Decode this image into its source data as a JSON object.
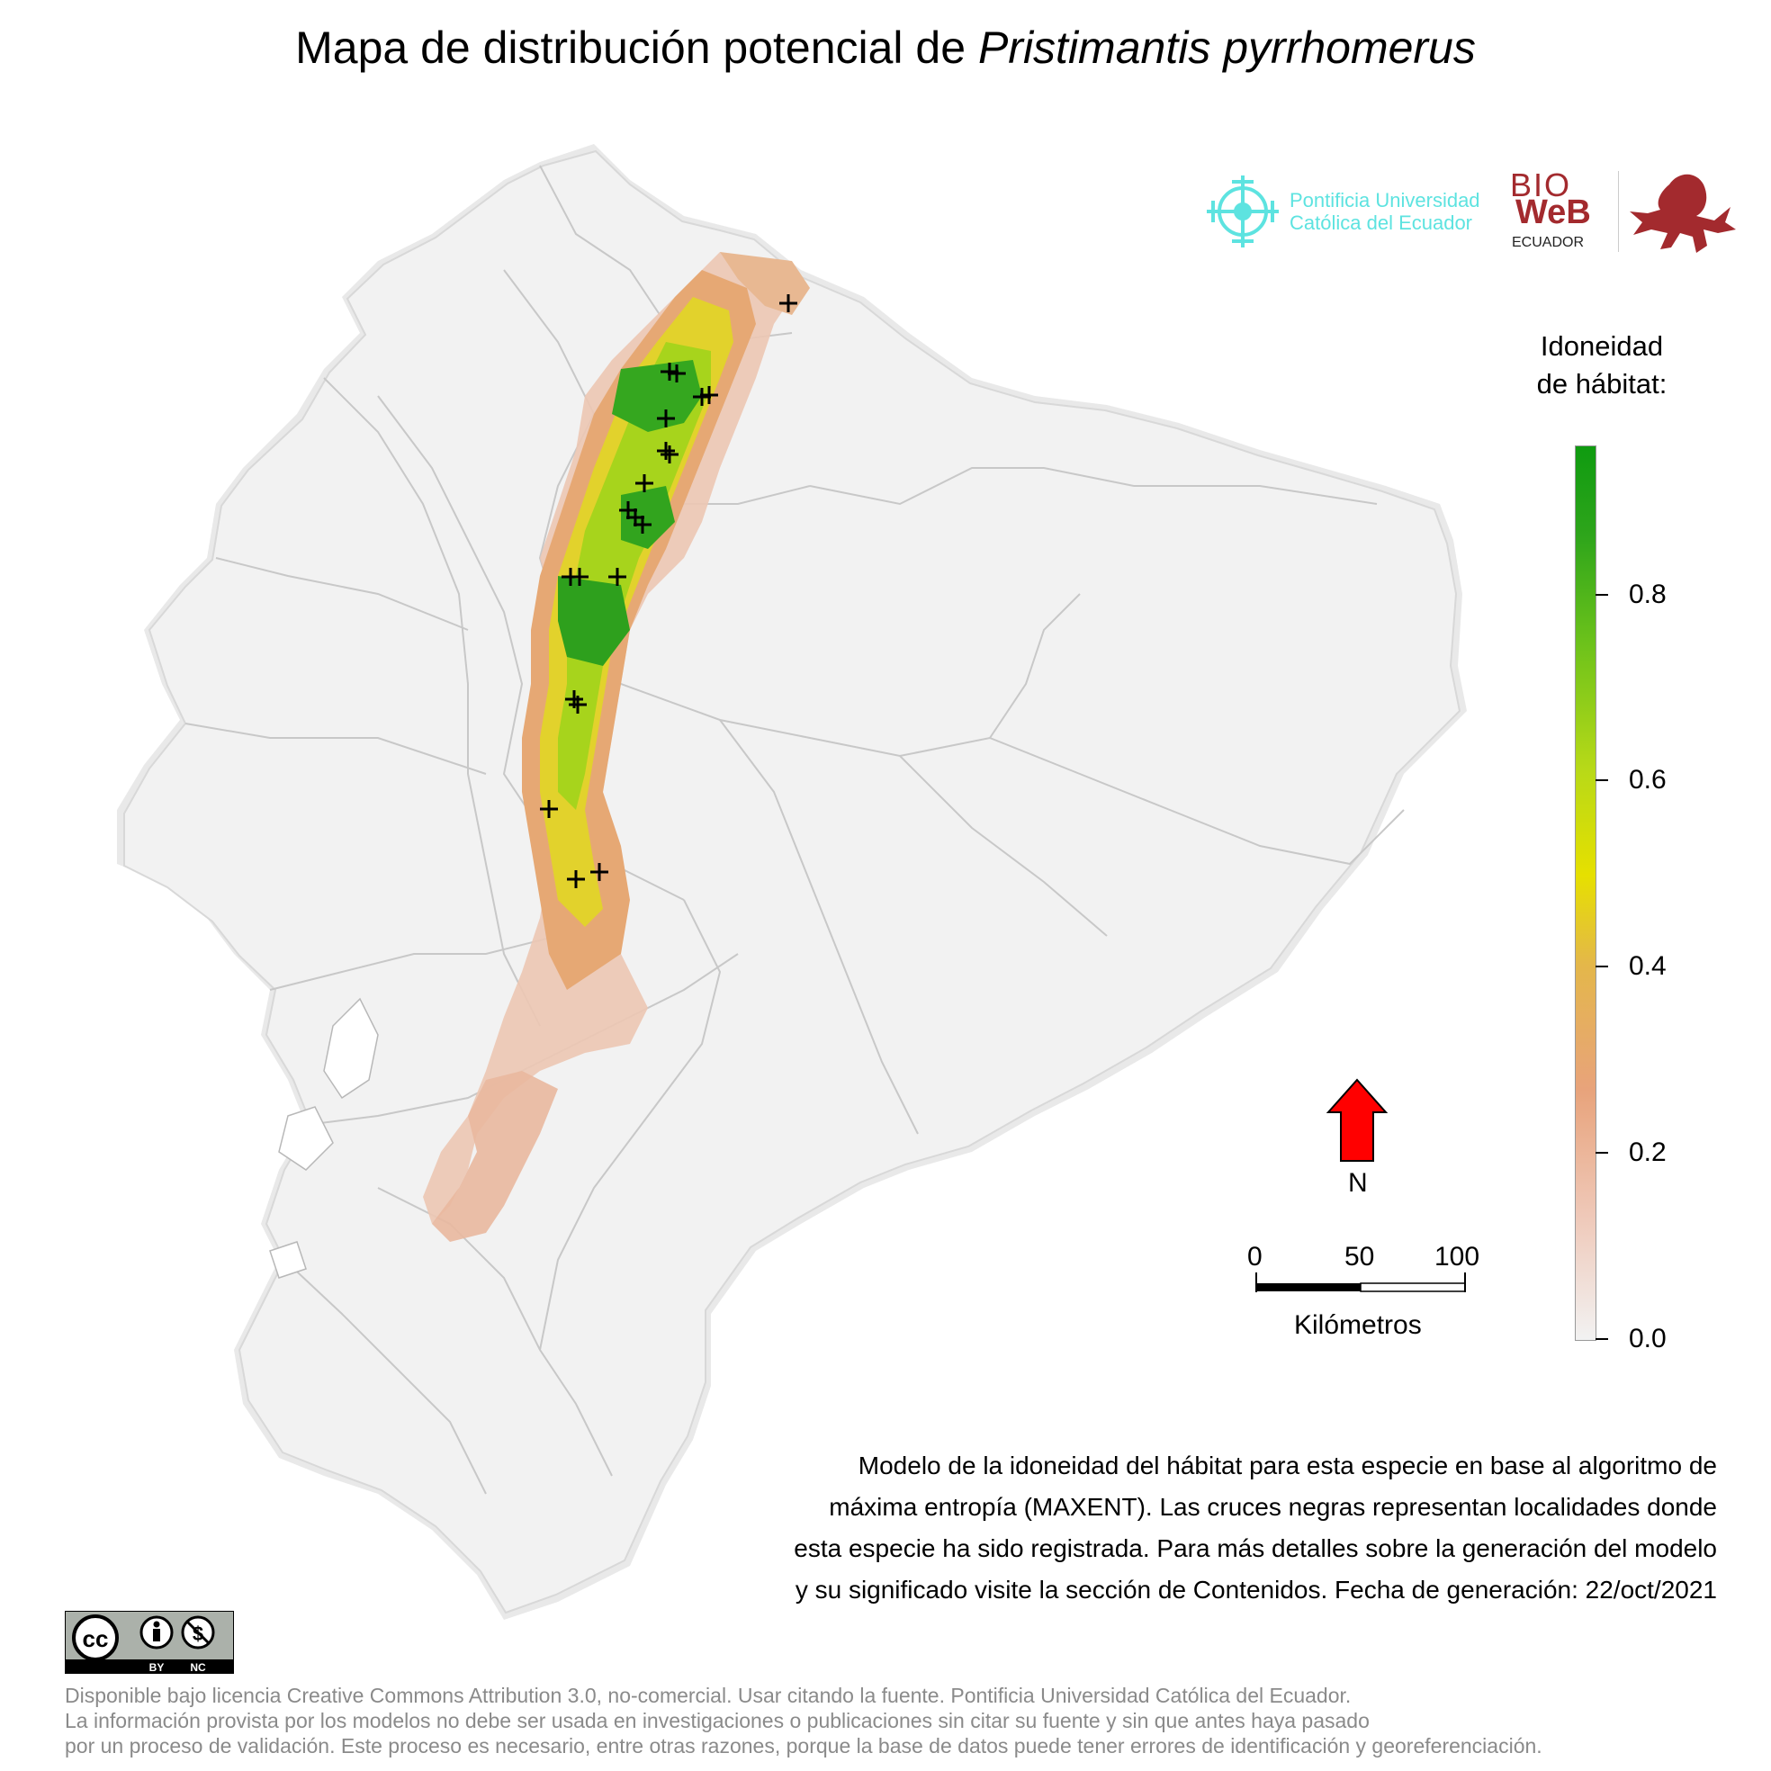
{
  "title": {
    "prefix": "Mapa de distribución potencial de ",
    "species": "Pristimantis pyrrhomerus"
  },
  "logos": {
    "pucp_line1": "Pontificia Universidad",
    "pucp_line2": "Católica del Ecuador",
    "bioweb_bio": "BIO",
    "bioweb_web": "WeB",
    "bioweb_ecuador": "ECUADOR",
    "cc_by": "BY",
    "cc_nc": "NC"
  },
  "legend": {
    "title_line1": "Idoneidad",
    "title_line2": "de hábitat:",
    "ticks": [
      {
        "label": "0.8",
        "value": 0.8
      },
      {
        "label": "0.6",
        "value": 0.6
      },
      {
        "label": "0.4",
        "value": 0.4
      },
      {
        "label": "0.2",
        "value": 0.2
      },
      {
        "label": "0.0",
        "value": 0.0
      }
    ],
    "min": 0.0,
    "max": 0.96,
    "colors": {
      "low": "#f2f2f2",
      "mid": "#e6e000",
      "high": "#0f9b10"
    }
  },
  "north_arrow": {
    "label": "N",
    "color": "#ff0000"
  },
  "scale_bar": {
    "labels": [
      "0",
      "50",
      "100"
    ],
    "unit": "Kilómetros"
  },
  "description": [
    "Modelo de la idoneidad del hábitat para esta especie en base al algoritmo de",
    "máxima entropía (MAXENT). Las cruces negras representan localidades donde",
    "esta especie ha sido registrada. Para más detalles sobre la generación del modelo",
    "y su significado visite la sección de Contenidos. Fecha de generación: 22/oct/2021"
  ],
  "footer": [
    "Disponible bajo licencia Creative Commons Attribution 3.0, no-comercial. Usar citando la fuente. Pontificia Universidad Católica del Ecuador.",
    "La información provista por los modelos no debe ser usada en investigaciones o publicaciones sin citar su fuente y sin que antes haya pasado",
    "por un proceso de validación. Este proceso es necesario, entre otras razones, porque la base de datos puede tener errores de identificación y georeferenciación."
  ],
  "colors": {
    "land": "#f2f2f2",
    "borders": "#c8c8c8",
    "markers": "#000000"
  }
}
